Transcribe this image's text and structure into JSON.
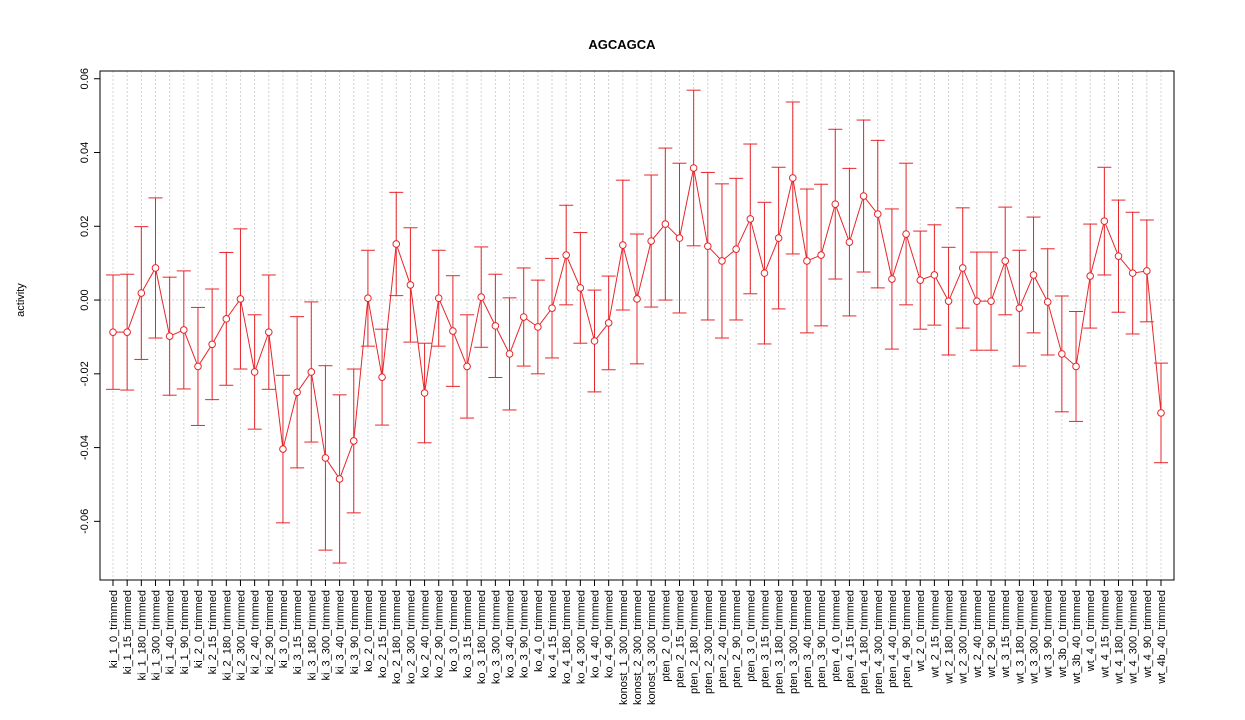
{
  "chart_data": {
    "type": "line",
    "title": "AGCAGCA",
    "y_label": "activity",
    "categories": [
      "ki_1_0_trimmed",
      "ki_1_15_trimmed",
      "ki_1_180_trimmed",
      "ki_1_300_trimmed",
      "ki_1_40_trimmed",
      "ki_1_90_trimmed",
      "ki_2_0_trimmed",
      "ki_2_15_trimmed",
      "ki_2_180_trimmed",
      "ki_2_300_trimmed",
      "ki_2_40_trimmed",
      "ki_2_90_trimmed",
      "ki_3_0_trimmed",
      "ki_3_15_trimmed",
      "ki_3_180_trimmed",
      "ki_3_300_trimmed",
      "ki_3_40_trimmed",
      "ki_3_90_trimmed",
      "ko_2_0_trimmed",
      "ko_2_15_trimmed",
      "ko_2_180_trimmed",
      "ko_2_300_trimmed",
      "ko_2_40_trimmed",
      "ko_2_90_trimmed",
      "ko_3_0_trimmed",
      "ko_3_15_trimmed",
      "ko_3_180_trimmed",
      "ko_3_300_trimmed",
      "ko_3_40_trimmed",
      "ko_3_90_trimmed",
      "ko_4_0_trimmed",
      "ko_4_15_trimmed",
      "ko_4_180_trimmed",
      "ko_4_300_trimmed",
      "ko_4_40_trimmed",
      "ko_4_90_trimmed",
      "konost_1_300_trimmed",
      "konost_2_300_trimmed",
      "konost_3_300_trimmed",
      "pten_2_0_trimmed",
      "pten_2_15_trimmed",
      "pten_2_180_trimmed",
      "pten_2_300_trimmed",
      "pten_2_40_trimmed",
      "pten_2_90_trimmed",
      "pten_3_0_trimmed",
      "pten_3_15_trimmed",
      "pten_3_180_trimmed",
      "pten_3_300_trimmed",
      "pten_3_40_trimmed",
      "pten_3_90_trimmed",
      "pten_4_0_trimmed",
      "pten_4_15_trimmed",
      "pten_4_180_trimmed",
      "pten_4_300_trimmed",
      "pten_4_40_trimmed",
      "pten_4_90_trimmed",
      "wt_2_0_trimmed",
      "wt_2_15_trimmed",
      "wt_2_180_trimmed",
      "wt_2_300_trimmed",
      "wt_2_40_trimmed",
      "wt_2_90_trimmed",
      "wt_3_15_trimmed",
      "wt_3_180_trimmed",
      "wt_3_300_trimmed",
      "wt_3_90_trimmed",
      "wt_3b_0_trimmed",
      "wt_3b_40_trimmed",
      "wt_4_0_trimmed",
      "wt_4_15_trimmed",
      "wt_4_180_trimmed",
      "wt_4_300_trimmed",
      "wt_4_90_trimmed",
      "wt_4b_40_trimmed"
    ],
    "values": [
      -0.0087,
      -0.0087,
      0.0019,
      0.0087,
      -0.0098,
      -0.0081,
      -0.018,
      -0.012,
      -0.0051,
      0.0003,
      -0.0195,
      -0.0087,
      -0.0404,
      -0.025,
      -0.0195,
      -0.0428,
      -0.0485,
      -0.0382,
      0.0005,
      -0.0209,
      0.0152,
      0.0041,
      -0.0252,
      0.0005,
      -0.0084,
      -0.018,
      0.0008,
      -0.007,
      -0.0146,
      -0.0046,
      -0.0073,
      -0.0022,
      0.0122,
      0.0033,
      -0.0111,
      -0.0062,
      0.0149,
      0.0003,
      0.016,
      0.0206,
      0.0168,
      0.0358,
      0.0146,
      0.0106,
      0.0138,
      0.022,
      0.0073,
      0.0168,
      0.0331,
      0.0106,
      0.0122,
      0.026,
      0.0157,
      0.0282,
      0.0233,
      0.0057,
      0.0179,
      0.0054,
      0.0068,
      -0.0003,
      0.0087,
      -0.0003,
      -0.0003,
      0.0106,
      -0.0022,
      0.0068,
      -0.0005,
      -0.0146,
      -0.018,
      0.0065,
      0.0214,
      0.0119,
      0.0073,
      0.0079,
      -0.0306
    ],
    "errors": [
      0.0155,
      0.0157,
      0.018,
      0.019,
      0.016,
      0.016,
      0.016,
      0.015,
      0.018,
      0.019,
      0.0155,
      0.0155,
      0.02,
      0.0205,
      0.019,
      0.025,
      0.0228,
      0.0195,
      0.013,
      0.013,
      0.014,
      0.0155,
      0.0135,
      0.013,
      0.015,
      0.014,
      0.0136,
      0.014,
      0.0152,
      0.0133,
      0.0127,
      0.0135,
      0.0135,
      0.015,
      0.0138,
      0.0127,
      0.0176,
      0.0176,
      0.0179,
      0.0206,
      0.0203,
      0.0211,
      0.02,
      0.0209,
      0.0192,
      0.0203,
      0.0192,
      0.0192,
      0.0206,
      0.0195,
      0.0192,
      0.0203,
      0.02,
      0.0206,
      0.02,
      0.019,
      0.0192,
      0.0133,
      0.0136,
      0.0146,
      0.0163,
      0.0133,
      0.0133,
      0.0146,
      0.0157,
      0.0157,
      0.0144,
      0.0157,
      0.0149,
      0.0141,
      0.0146,
      0.0152,
      0.0165,
      0.0138,
      0.0135
    ],
    "color": "#e8252a",
    "ylim": [
      -0.0759,
      0.0621
    ],
    "yticks": [
      -0.06,
      -0.04,
      -0.02,
      {
        "value": 0,
        "label": "0.00"
      },
      0.02,
      0.04,
      0.06
    ],
    "grid": true,
    "reference_line": 0
  }
}
